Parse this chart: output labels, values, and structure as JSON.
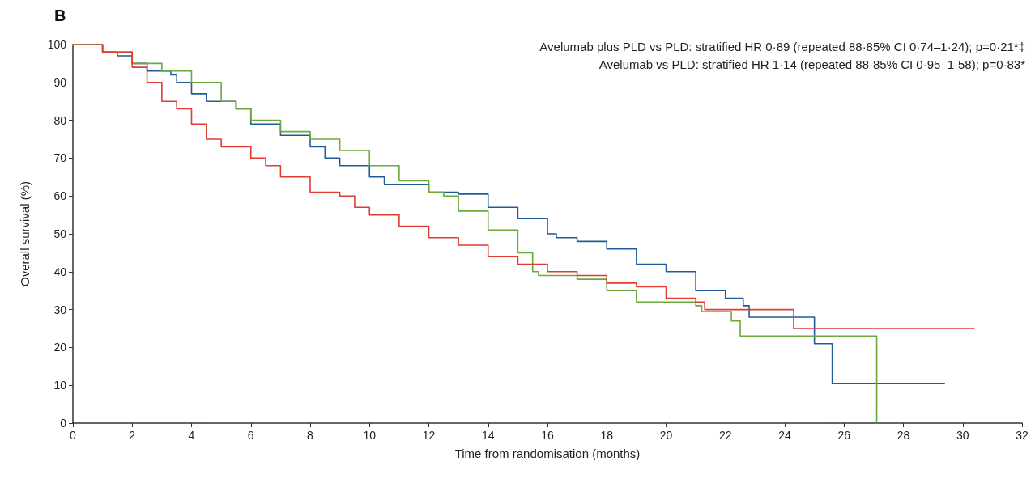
{
  "chart_data": {
    "type": "step",
    "title": "B",
    "xlabel": "Time from randomisation (months)",
    "ylabel": "Overall survival (%)",
    "annotations": [
      "Avelumab plus PLD vs PLD: stratified HR 0·89 (repeated 88·85% CI 0·74–1·24); p=0·21*‡",
      "Avelumab vs PLD: stratified HR 1·14 (repeated 88·85% CI 0·95–1·58); p=0·83*"
    ],
    "xlim": [
      0,
      32
    ],
    "xticks": [
      0,
      2,
      4,
      6,
      8,
      10,
      12,
      14,
      16,
      18,
      20,
      22,
      24,
      26,
      28,
      30,
      32
    ],
    "ylim": [
      0,
      100
    ],
    "yticks": [
      0,
      10,
      20,
      30,
      40,
      50,
      60,
      70,
      80,
      90,
      100
    ],
    "grid": false,
    "marker": "none",
    "line_style": "solid",
    "series": [
      {
        "color": "#1f5c99",
        "x": [
          0,
          1,
          1.5,
          2,
          2.5,
          3.3,
          3.5,
          4,
          4.5,
          5.5,
          6,
          7,
          8,
          8.5,
          9,
          10,
          10.5,
          12,
          13,
          14,
          15,
          16,
          16.3,
          17,
          18,
          19,
          20,
          21,
          22,
          22.6,
          22.8,
          25,
          25.6,
          29.4
        ],
        "values": [
          100,
          98,
          97,
          95,
          93,
          92,
          90,
          87,
          85,
          83,
          79,
          76,
          73,
          70,
          68,
          65,
          63,
          61,
          60.5,
          57,
          54,
          50,
          49,
          48,
          46,
          42,
          40,
          35,
          33,
          31,
          28,
          21,
          10.5,
          10.5
        ]
      },
      {
        "color": "#6aaa3a",
        "x": [
          0,
          1,
          2,
          3,
          4,
          5,
          5.5,
          6,
          7,
          8,
          9,
          10,
          11,
          12,
          12.5,
          13,
          14,
          15,
          15.5,
          15.7,
          17,
          18,
          19,
          21,
          21.2,
          22.2,
          22.5,
          27.1,
          27.1
        ],
        "values": [
          100,
          98,
          95,
          93,
          90,
          85,
          83,
          80,
          77,
          75,
          72,
          68,
          64,
          61,
          60,
          56,
          51,
          45,
          40,
          39,
          38,
          35,
          32,
          31,
          29.5,
          27,
          23,
          23,
          0
        ]
      },
      {
        "color": "#e03c31",
        "x": [
          0,
          1,
          2,
          2.5,
          3,
          3.5,
          4,
          4.5,
          5,
          6,
          6.5,
          7,
          8,
          9,
          9.5,
          10,
          11,
          12,
          13,
          14,
          15,
          16,
          17,
          18,
          19,
          20,
          21,
          21.3,
          24.3,
          30.4
        ],
        "values": [
          100,
          98,
          94,
          90,
          85,
          83,
          79,
          75,
          73,
          70,
          68,
          65,
          61,
          60,
          57,
          55,
          52,
          49,
          47,
          44,
          42,
          40,
          39,
          37,
          36,
          33,
          32,
          30,
          25,
          25
        ]
      }
    ]
  }
}
